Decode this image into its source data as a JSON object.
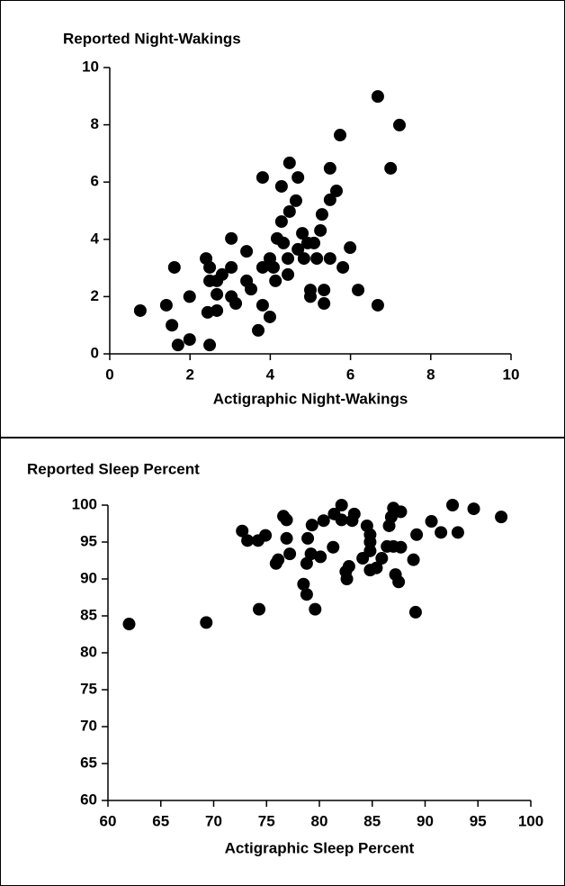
{
  "chart_data": [
    {
      "type": "scatter",
      "title": "Reported Night-Wakings",
      "x_label": "Actigraphic Night-Wakings",
      "color": "#000000",
      "xlim": [
        0,
        10
      ],
      "ylim": [
        0,
        10
      ],
      "xticks": [
        0,
        2,
        4,
        6,
        8,
        10
      ],
      "yticks": [
        0,
        2,
        4,
        6,
        8,
        10
      ],
      "x": [
        0.76,
        1.41,
        1.61,
        1.55,
        1.7,
        1.99,
        1.99,
        2.4,
        2.49,
        2.44,
        2.49,
        2.49,
        2.67,
        2.67,
        2.67,
        2.8,
        3.03,
        3.03,
        3.03,
        3.14,
        3.41,
        3.41,
        3.52,
        3.7,
        3.81,
        3.81,
        3.81,
        3.99,
        3.99,
        4.08,
        4.13,
        4.17,
        4.28,
        4.28,
        4.33,
        4.44,
        4.44,
        4.48,
        4.48,
        4.64,
        4.69,
        4.69,
        4.8,
        4.84,
        4.93,
        5.0,
        5.0,
        5.09,
        5.16,
        5.25,
        5.29,
        5.34,
        5.34,
        5.49,
        5.49,
        5.49,
        5.65,
        5.74,
        5.81,
        5.99,
        6.19,
        6.68,
        6.68,
        7.0,
        7.22
      ],
      "y": [
        1.51,
        1.7,
        3.02,
        1.0,
        0.31,
        2.0,
        0.5,
        3.33,
        3.02,
        1.45,
        0.31,
        2.55,
        2.55,
        2.08,
        1.51,
        2.77,
        4.03,
        3.02,
        2.0,
        1.76,
        3.58,
        2.55,
        2.26,
        0.82,
        6.16,
        3.02,
        1.7,
        3.33,
        1.29,
        3.02,
        2.55,
        4.03,
        5.85,
        4.62,
        3.87,
        2.77,
        3.33,
        6.67,
        4.97,
        5.35,
        6.16,
        3.65,
        4.21,
        3.33,
        3.87,
        2.23,
        2.0,
        3.87,
        3.33,
        4.31,
        4.87,
        2.23,
        1.76,
        6.48,
        5.38,
        3.33,
        5.69,
        7.64,
        3.02,
        3.71,
        2.23,
        8.99,
        1.7,
        6.48,
        7.99
      ]
    },
    {
      "type": "scatter",
      "title": "Reported Sleep Percent",
      "x_label": "Actigraphic Sleep Percent",
      "color": "#000000",
      "xlim": [
        60,
        100
      ],
      "ylim": [
        60,
        100
      ],
      "xticks": [
        60,
        65,
        70,
        75,
        80,
        85,
        90,
        95,
        100
      ],
      "yticks": [
        60,
        65,
        70,
        75,
        80,
        85,
        90,
        95,
        100
      ],
      "x": [
        62.0,
        69.3,
        72.7,
        73.2,
        74.2,
        74.9,
        74.3,
        75.9,
        76.1,
        76.6,
        76.9,
        76.9,
        77.2,
        78.5,
        78.8,
        78.8,
        78.9,
        79.2,
        79.3,
        79.6,
        80.1,
        80.4,
        81.3,
        81.4,
        82.1,
        82.1,
        82.5,
        82.6,
        82.8,
        83.1,
        83.3,
        84.1,
        84.5,
        84.8,
        84.8,
        84.8,
        84.8,
        85.4,
        85.9,
        86.4,
        86.6,
        86.8,
        87.0,
        87.0,
        87.2,
        87.5,
        87.7,
        87.7,
        88.9,
        89.1,
        89.2,
        90.6,
        91.5,
        92.6,
        93.1,
        94.6,
        97.2
      ],
      "y": [
        83.9,
        84.1,
        96.5,
        95.2,
        95.2,
        95.9,
        85.9,
        92.1,
        92.6,
        98.5,
        98.0,
        95.5,
        93.4,
        89.3,
        87.9,
        92.1,
        95.5,
        93.4,
        97.3,
        85.9,
        93.0,
        97.9,
        94.3,
        98.8,
        100.0,
        98.0,
        91.0,
        90.0,
        91.7,
        97.9,
        98.8,
        92.8,
        97.2,
        95.0,
        96.0,
        93.8,
        91.2,
        91.5,
        92.8,
        94.4,
        97.2,
        98.4,
        99.6,
        94.4,
        90.6,
        89.6,
        94.3,
        99.1,
        92.6,
        85.5,
        96.0,
        97.8,
        96.3,
        100.0,
        96.3,
        99.5,
        98.4
      ]
    }
  ]
}
